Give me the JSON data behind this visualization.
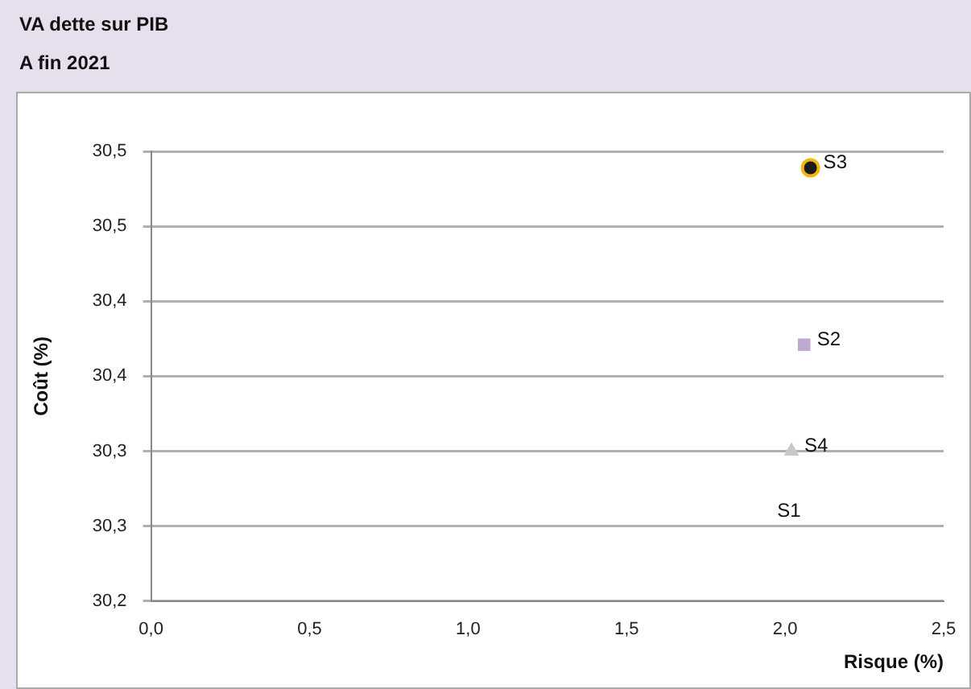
{
  "chart_data": {
    "type": "scatter",
    "title": "VA dette sur PIB",
    "subtitle": "A fin 2021",
    "xlabel": "Risque (%)",
    "ylabel": "Coût (%)",
    "xlim": [
      0,
      2.5
    ],
    "xticks": [
      {
        "value": 0,
        "label": "0,0"
      },
      {
        "value": 0.5,
        "label": "0,5"
      },
      {
        "value": 1,
        "label": "1,0"
      },
      {
        "value": 1.5,
        "label": "1,5"
      },
      {
        "value": 2,
        "label": "2,0"
      },
      {
        "value": 2.5,
        "label": "2,5"
      }
    ],
    "ylim": [
      30.2,
      30.5
    ],
    "yticks": [
      {
        "value": 30.2,
        "label": "30,2"
      },
      {
        "value": 30.25,
        "label": "30,3"
      },
      {
        "value": 30.3,
        "label": "30,3"
      },
      {
        "value": 30.35,
        "label": "30,4"
      },
      {
        "value": 30.4,
        "label": "30,4"
      },
      {
        "value": 30.45,
        "label": "30,5"
      },
      {
        "value": 30.5,
        "label": "30,5"
      }
    ],
    "grid": "y",
    "legend": false,
    "annotations": [
      "S1"
    ],
    "series": [
      {
        "name": "S2",
        "color": "#bfa9d3",
        "marker": "square",
        "x": [
          2.06
        ],
        "values": [
          30.371
        ]
      },
      {
        "name": "S3",
        "color": "#f2b705",
        "marker": "circle",
        "x": [
          2.08
        ],
        "values": [
          30.489
        ]
      },
      {
        "name": "S4",
        "color": "#c8c8c8",
        "marker": "triangle",
        "x": [
          2.02
        ],
        "values": [
          30.3
        ]
      }
    ]
  }
}
